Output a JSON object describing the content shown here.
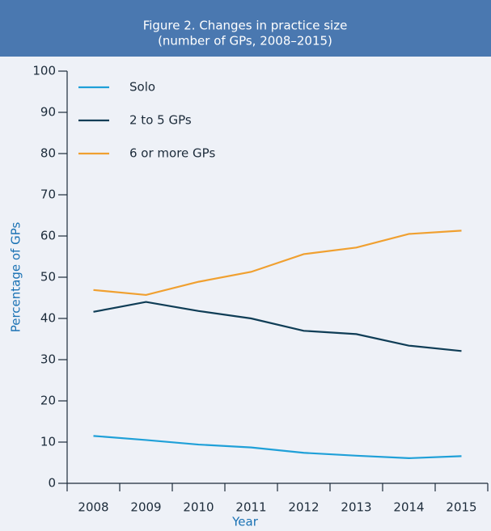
{
  "chart_data": {
    "type": "line",
    "title": "Figure 2. Changes in practice size",
    "subtitle": "(number of GPs, 2008–2015)",
    "x_label": "Year",
    "y_label": "Percentage of GPs",
    "categories": [
      "2008",
      "2009",
      "2010",
      "2011",
      "2012",
      "2013",
      "2014",
      "2015"
    ],
    "series": [
      {
        "name": "Solo",
        "color": "#1fa0d8",
        "values": [
          11.5,
          10.5,
          9.4,
          8.7,
          7.4,
          6.7,
          6.1,
          6.6
        ]
      },
      {
        "name": "2 to 5 GPs",
        "color": "#0f3d56",
        "values": [
          41.6,
          44.0,
          41.8,
          40.0,
          37.0,
          36.2,
          33.4,
          32.1
        ]
      },
      {
        "name": "6 or more GPs",
        "color": "#f0a030",
        "values": [
          46.9,
          45.7,
          48.9,
          51.3,
          55.6,
          57.2,
          60.5,
          61.3
        ]
      }
    ],
    "ylim": [
      0,
      100
    ],
    "yticks": [
      0,
      10,
      20,
      30,
      40,
      50,
      60,
      70,
      80,
      90,
      100
    ],
    "legend": "top-left",
    "grid": false
  }
}
